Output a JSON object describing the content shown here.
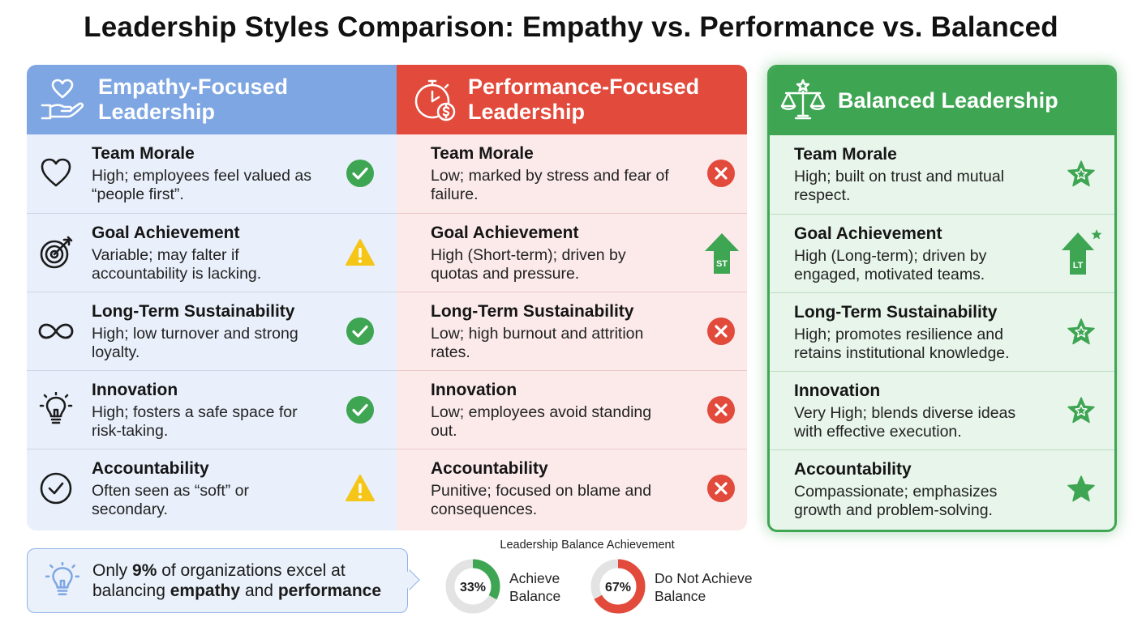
{
  "title": "Leadership Styles Comparison: Empathy vs. Performance vs. Balanced",
  "columns": {
    "empathy": {
      "heading_line1": "Empathy-Focused",
      "heading_line2": "Leadership",
      "header_color": "#7ea6e3",
      "icon": "heart-in-hand-icon",
      "rows": [
        {
          "title": "Team Morale",
          "line1": "High; employees feel valued as",
          "line2": "“people first”.",
          "icon": "heart-icon",
          "status": "check-icon"
        },
        {
          "title": "Goal Achievement",
          "line1": "Variable; may falter if",
          "line2": "accountability is lacking.",
          "icon": "target-icon",
          "status": "warning-icon"
        },
        {
          "title": "Long-Term Sustainability",
          "line1": "High; low turnover and strong",
          "line2": "loyalty.",
          "icon": "infinity-icon",
          "status": "check-icon"
        },
        {
          "title": "Innovation",
          "line1": "High; fosters a safe space for",
          "line2": "risk-taking.",
          "icon": "lightbulb-icon",
          "status": "check-icon"
        },
        {
          "title": "Accountability",
          "line1": "Often seen as “soft” or",
          "line2": "secondary.",
          "icon": "check-circle-icon",
          "status": "warning-icon"
        }
      ]
    },
    "performance": {
      "heading_line1": "Performance-Focused",
      "heading_line2": "Leadership",
      "header_color": "#e24a3b",
      "icon": "stopwatch-dollar-icon",
      "rows": [
        {
          "title": "Team Morale",
          "line1": "Low; marked by stress and fear of",
          "line2": "failure.",
          "status": "x-icon"
        },
        {
          "title": "Goal Achievement",
          "line1": "High (Short-term); driven by",
          "line2": "quotas and pressure.",
          "status": "arrow-up-icon",
          "badge": "ST"
        },
        {
          "title": "Long-Term Sustainability",
          "line1": "Low; high burnout and attrition",
          "line2": "rates.",
          "status": "x-icon"
        },
        {
          "title": "Innovation",
          "line1": "Low; employees avoid standing",
          "line2": "out.",
          "status": "x-icon"
        },
        {
          "title": "Accountability",
          "line1": "Punitive; focused on blame and",
          "line2": "consequences.",
          "status": "x-icon"
        }
      ]
    },
    "balanced": {
      "heading": "Balanced Leadership",
      "header_color": "#3ea552",
      "icon": "scales-icon",
      "rows": [
        {
          "title": "Team Morale",
          "line1": "High; built on trust and mutual",
          "line2": "respect.",
          "status": "star-icon"
        },
        {
          "title": "Goal Achievement",
          "line1": "High (Long-term); driven by",
          "line2": "engaged, motivated teams.",
          "status": "arrow-up-star-icon",
          "badge": "LT"
        },
        {
          "title": "Long-Term Sustainability",
          "line1": "High; promotes resilience and",
          "line2": "retains institutional knowledge.",
          "status": "star-icon"
        },
        {
          "title": "Innovation",
          "line1": "Very High; blends diverse ideas",
          "line2": "with effective execution.",
          "status": "star-icon"
        },
        {
          "title": "Accountability",
          "line1": "Compassionate; emphasizes",
          "line2": "growth and problem-solving.",
          "status": "star-icon"
        }
      ]
    }
  },
  "callout": {
    "icon": "lightbulb-icon",
    "part1": "Only ",
    "stat": "9%",
    "part2": " of organizations excel at",
    "part3": "balancing ",
    "bold1": "empathy",
    "part4": " and ",
    "bold2": "performance"
  },
  "balance_chart": {
    "title": "Leadership Balance Achievement",
    "items": [
      {
        "percent": 33,
        "label_text": "33%",
        "line1": "Achieve",
        "line2": "Balance",
        "color": "#3ea552"
      },
      {
        "percent": 67,
        "label_text": "67%",
        "line1": "Do Not Achieve",
        "line2": "Balance",
        "color": "#e24a3b"
      }
    ],
    "track_color": "#e3e3e3"
  },
  "colors": {
    "check": "#3ea552",
    "warning": "#f5c518",
    "cross": "#e24a3b",
    "star": "#3ea552"
  }
}
